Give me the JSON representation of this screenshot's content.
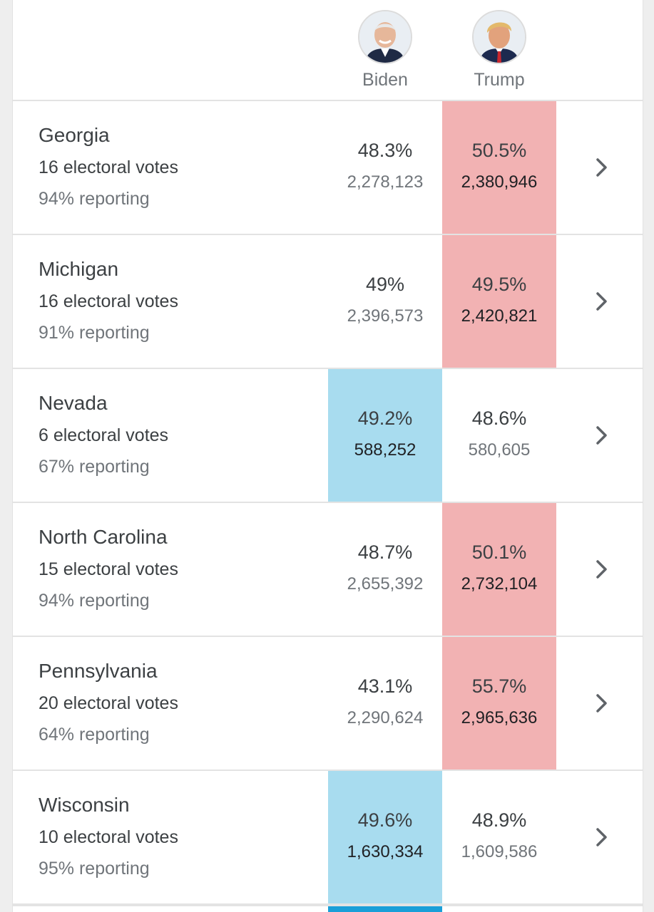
{
  "candidates": {
    "biden": {
      "name": "Biden",
      "color": "#a8dcef"
    },
    "trump": {
      "name": "Trump",
      "color": "#f2b2b3"
    }
  },
  "states": [
    {
      "name": "Georgia",
      "electoral": "16 electoral votes",
      "reporting": "94% reporting",
      "biden_pct": "48.3%",
      "biden_votes": "2,278,123",
      "trump_pct": "50.5%",
      "trump_votes": "2,380,946",
      "leader": "trump"
    },
    {
      "name": "Michigan",
      "electoral": "16 electoral votes",
      "reporting": "91% reporting",
      "biden_pct": "49%",
      "biden_votes": "2,396,573",
      "trump_pct": "49.5%",
      "trump_votes": "2,420,821",
      "leader": "trump"
    },
    {
      "name": "Nevada",
      "electoral": "6 electoral votes",
      "reporting": "67% reporting",
      "biden_pct": "49.2%",
      "biden_votes": "588,252",
      "trump_pct": "48.6%",
      "trump_votes": "580,605",
      "leader": "biden"
    },
    {
      "name": "North Carolina",
      "electoral": "15 electoral votes",
      "reporting": "94% reporting",
      "biden_pct": "48.7%",
      "biden_votes": "2,655,392",
      "trump_pct": "50.1%",
      "trump_votes": "2,732,104",
      "leader": "trump"
    },
    {
      "name": "Pennsylvania",
      "electoral": "20 electoral votes",
      "reporting": "64% reporting",
      "biden_pct": "43.1%",
      "biden_votes": "2,290,624",
      "trump_pct": "55.7%",
      "trump_votes": "2,965,636",
      "leader": "trump"
    },
    {
      "name": "Wisconsin",
      "electoral": "10 electoral votes",
      "reporting": "95% reporting",
      "biden_pct": "49.6%",
      "biden_votes": "1,630,334",
      "trump_pct": "48.9%",
      "trump_votes": "1,609,586",
      "leader": "biden"
    }
  ],
  "icons": {
    "row_action": "chevron-right-icon"
  }
}
